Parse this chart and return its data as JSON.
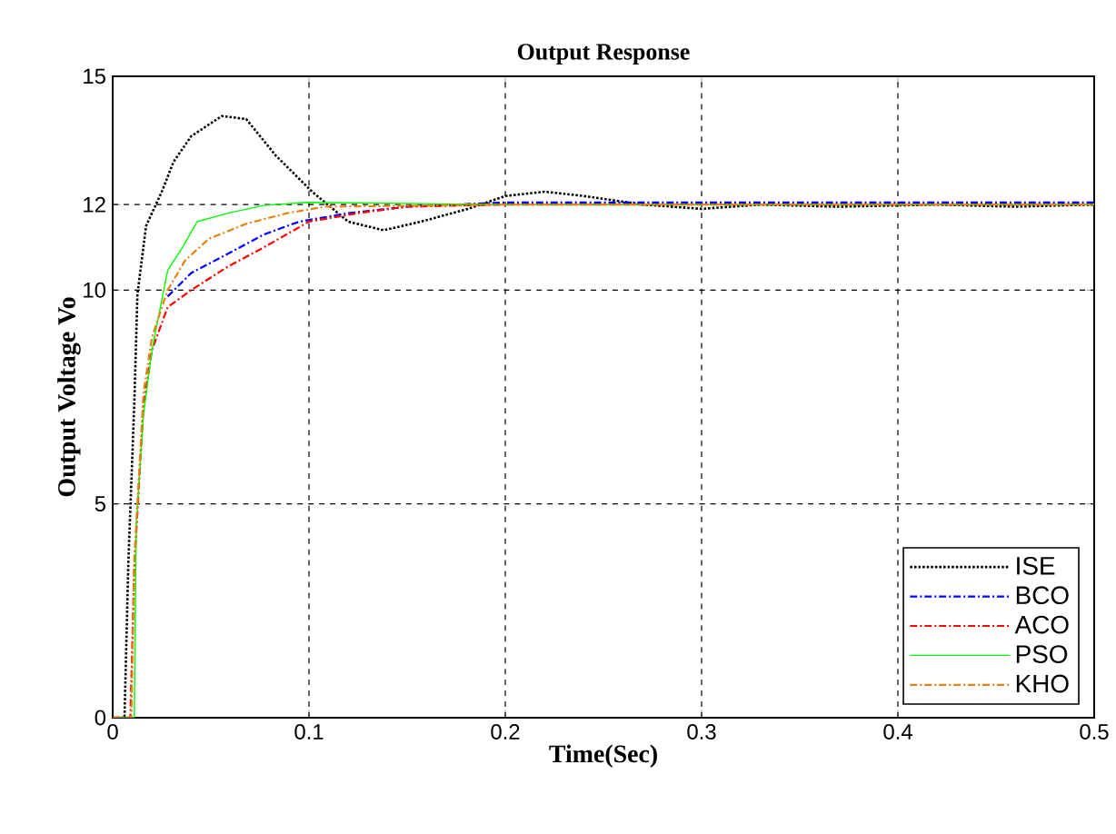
{
  "chart_data": {
    "type": "line",
    "title": "Output Response",
    "xlabel": "Time(Sec)",
    "ylabel": "Output Voltage Vo",
    "xlim": [
      0,
      0.5
    ],
    "ylim": [
      0,
      15
    ],
    "xticks": [
      0,
      0.1,
      0.2,
      0.3,
      0.4,
      0.5
    ],
    "yticks": [
      0,
      5,
      10,
      12,
      15
    ],
    "grid": true,
    "legend": "bottom right",
    "series": [
      {
        "name": "ISE",
        "color": "#000000",
        "line_style": "dotted",
        "x": [
          0,
          0.006,
          0.008,
          0.011,
          0.0126,
          0.017,
          0.025,
          0.031,
          0.04,
          0.0556,
          0.068,
          0.083,
          0.1016,
          0.12,
          0.138,
          0.157,
          0.181,
          0.2,
          0.22,
          0.24,
          0.27,
          0.3,
          0.33,
          0.37,
          0.42,
          0.46,
          0.5
        ],
        "values": [
          0,
          0,
          3.66,
          7.35,
          9.9,
          11.5,
          12.3,
          13.0,
          13.6,
          14.07,
          14.0,
          13.15,
          12.3,
          11.6,
          11.4,
          11.6,
          11.9,
          12.2,
          12.3,
          12.2,
          12.0,
          11.9,
          12.0,
          11.95,
          12.0,
          11.95,
          12.0
        ]
      },
      {
        "name": "BCO",
        "color": "#0000ff",
        "line_style": "dashdotted",
        "x": [
          0.028,
          0.04,
          0.0587,
          0.077,
          0.095,
          0.12,
          0.15,
          0.2,
          0.3,
          0.4,
          0.5
        ],
        "values": [
          9.85,
          10.4,
          10.85,
          11.3,
          11.6,
          11.8,
          11.95,
          12.05,
          12.05,
          12.05,
          12.05
        ]
      },
      {
        "name": "ACO",
        "color": "#ff0000",
        "line_style": "dashdotted",
        "x": [
          0,
          0.009,
          0.011,
          0.0157,
          0.02,
          0.028,
          0.04,
          0.0587,
          0.077,
          0.1,
          0.125,
          0.15,
          0.2,
          0.3,
          0.4,
          0.5
        ],
        "values": [
          0,
          0,
          3.5,
          7.3,
          8.6,
          9.6,
          10.0,
          10.55,
          11.0,
          11.6,
          11.8,
          11.95,
          12.0,
          12.0,
          12.0,
          12.0
        ]
      },
      {
        "name": "PSO",
        "color": "#00ff00",
        "line_style": "solid",
        "x": [
          0,
          0.011,
          0.012,
          0.0157,
          0.02,
          0.028,
          0.0356,
          0.043,
          0.0587,
          0.077,
          0.0985,
          0.2,
          0.3,
          0.4,
          0.5
        ],
        "values": [
          0,
          0,
          4.5,
          7.1,
          8.6,
          10.46,
          11.0,
          11.6,
          11.8,
          11.98,
          12.05,
          12.0,
          12.0,
          12.0,
          12.0
        ]
      },
      {
        "name": "KHO",
        "color": "#e6820e",
        "line_style": "dashdotted",
        "x": [
          0,
          0.0095,
          0.011,
          0.0157,
          0.02,
          0.028,
          0.037,
          0.049,
          0.068,
          0.089,
          0.108,
          0.2,
          0.3,
          0.4,
          0.5
        ],
        "values": [
          0,
          0,
          3.7,
          7.6,
          8.9,
          10.0,
          10.7,
          11.2,
          11.55,
          11.8,
          11.95,
          12.0,
          12.0,
          12.0,
          12.0
        ]
      }
    ]
  }
}
